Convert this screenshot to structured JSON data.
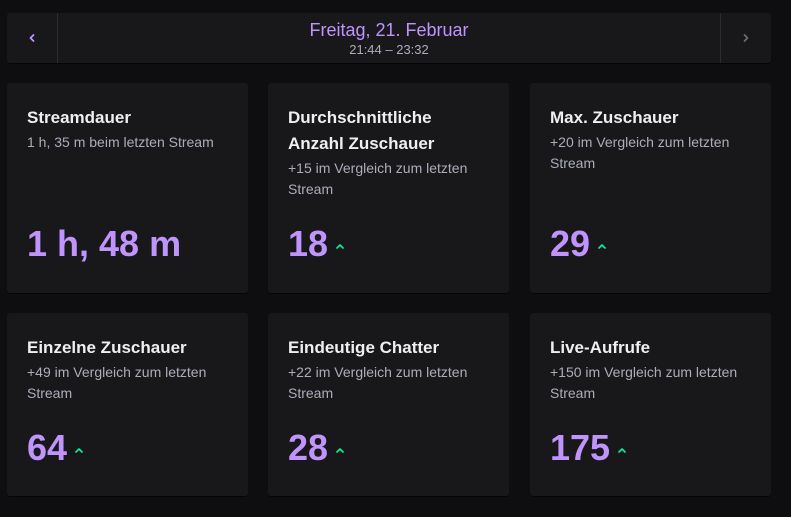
{
  "header": {
    "date": "Freitag, 21. Februar",
    "time_range": "21:44 – 23:32"
  },
  "colors": {
    "accent": "#bf94ff",
    "trend_up": "#00f593",
    "card_bg": "#18181b",
    "page_bg": "#0e0e10"
  },
  "cards": [
    {
      "title": "Streamdauer",
      "subtitle": "1 h, 35 m beim letzten Stream",
      "value": "1 h, 48 m",
      "trend": "none"
    },
    {
      "title": "Durchschnittliche Anzahl Zuschauer",
      "subtitle": "+15 im Vergleich zum letzten Stream",
      "value": "18",
      "trend": "up"
    },
    {
      "title": "Max. Zuschauer",
      "subtitle": "+20 im Vergleich zum letzten Stream",
      "value": "29",
      "trend": "up"
    },
    {
      "title": "Einzelne Zuschauer",
      "subtitle": "+49 im Vergleich zum letzten Stream",
      "value": "64",
      "trend": "up"
    },
    {
      "title": "Eindeutige Chatter",
      "subtitle": "+22 im Vergleich zum letzten Stream",
      "value": "28",
      "trend": "up"
    },
    {
      "title": "Live-Aufrufe",
      "subtitle": "+150 im Vergleich zum letzten Stream",
      "value": "175",
      "trend": "up"
    }
  ]
}
